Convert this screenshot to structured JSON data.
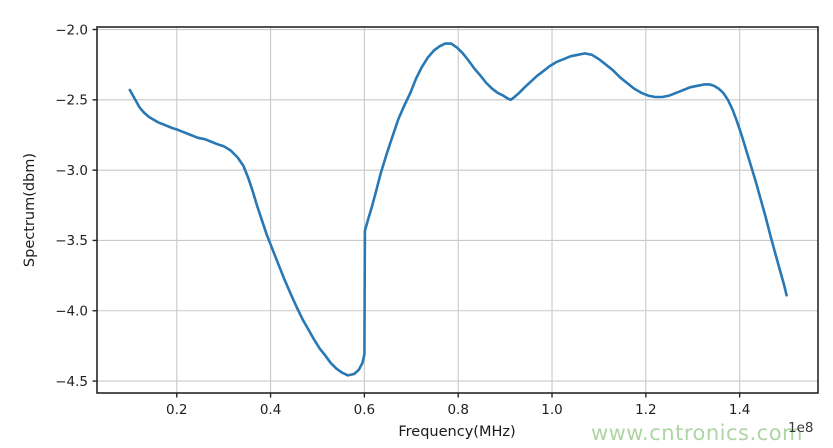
{
  "figure": {
    "offset_label": "1e8",
    "watermark": "www.cntronics.com"
  },
  "chart_data": {
    "type": "line",
    "title": "",
    "xlabel": "Frequency(MHz)",
    "ylabel": "Spectrum(dbm)",
    "x_unit_multiplier_label": "1e8",
    "xlim": [
      0.03,
      1.567
    ],
    "ylim": [
      -4.585,
      -1.982
    ],
    "grid": true,
    "legend_position": "none",
    "xticks": [
      {
        "v": 0.2,
        "label": "0.2"
      },
      {
        "v": 0.4,
        "label": "0.4"
      },
      {
        "v": 0.6,
        "label": "0.6"
      },
      {
        "v": 0.8,
        "label": "0.8"
      },
      {
        "v": 1.0,
        "label": "1.0"
      },
      {
        "v": 1.2,
        "label": "1.2"
      },
      {
        "v": 1.4,
        "label": "1.4"
      }
    ],
    "yticks": [
      {
        "v": -2.0,
        "label": "−2.0"
      },
      {
        "v": -2.5,
        "label": "−2.5"
      },
      {
        "v": -3.0,
        "label": "−3.0"
      },
      {
        "v": -3.5,
        "label": "−3.5"
      },
      {
        "v": -4.0,
        "label": "−4.0"
      },
      {
        "v": -4.5,
        "label": "−4.5"
      }
    ],
    "colors": {
      "line": "#2878b5",
      "grid": "#c9c9c9",
      "spine": "#262626",
      "tick_text": "#1f1f1f",
      "watermark": "#aed5a4",
      "offset_text": "#3a3a3a"
    },
    "series": [
      {
        "name": "spectrum",
        "x": [
          0.1,
          0.105,
          0.11,
          0.115,
          0.12,
          0.13,
          0.14,
          0.15,
          0.16,
          0.175,
          0.19,
          0.2,
          0.215,
          0.23,
          0.245,
          0.26,
          0.275,
          0.29,
          0.3,
          0.315,
          0.33,
          0.342,
          0.352,
          0.362,
          0.372,
          0.382,
          0.392,
          0.405,
          0.418,
          0.43,
          0.443,
          0.455,
          0.468,
          0.48,
          0.492,
          0.505,
          0.517,
          0.528,
          0.54,
          0.552,
          0.565,
          0.578,
          0.588,
          0.596,
          0.6,
          0.601,
          0.608,
          0.616,
          0.625,
          0.635,
          0.648,
          0.66,
          0.672,
          0.685,
          0.698,
          0.71,
          0.722,
          0.735,
          0.748,
          0.76,
          0.772,
          0.785,
          0.798,
          0.81,
          0.822,
          0.835,
          0.848,
          0.86,
          0.872,
          0.884,
          0.896,
          0.905,
          0.912,
          0.92,
          0.93,
          0.942,
          0.955,
          0.968,
          0.98,
          0.995,
          1.01,
          1.025,
          1.04,
          1.055,
          1.07,
          1.085,
          1.1,
          1.115,
          1.13,
          1.145,
          1.16,
          1.175,
          1.19,
          1.205,
          1.22,
          1.235,
          1.25,
          1.265,
          1.28,
          1.295,
          1.31,
          1.325,
          1.335,
          1.345,
          1.355,
          1.365,
          1.375,
          1.385,
          1.395,
          1.405,
          1.415,
          1.425,
          1.435,
          1.445,
          1.455,
          1.465,
          1.475,
          1.485,
          1.495,
          1.5
        ],
        "y": [
          -2.43,
          -2.46,
          -2.49,
          -2.52,
          -2.55,
          -2.59,
          -2.62,
          -2.64,
          -2.66,
          -2.68,
          -2.7,
          -2.71,
          -2.73,
          -2.75,
          -2.77,
          -2.78,
          -2.8,
          -2.82,
          -2.83,
          -2.86,
          -2.91,
          -2.97,
          -3.05,
          -3.15,
          -3.26,
          -3.36,
          -3.46,
          -3.57,
          -3.68,
          -3.78,
          -3.88,
          -3.97,
          -4.06,
          -4.13,
          -4.2,
          -4.27,
          -4.32,
          -4.37,
          -4.41,
          -4.44,
          -4.46,
          -4.45,
          -4.42,
          -4.37,
          -4.31,
          -3.43,
          -3.35,
          -3.26,
          -3.15,
          -3.02,
          -2.88,
          -2.76,
          -2.64,
          -2.54,
          -2.45,
          -2.35,
          -2.27,
          -2.2,
          -2.15,
          -2.12,
          -2.1,
          -2.1,
          -2.13,
          -2.17,
          -2.22,
          -2.28,
          -2.33,
          -2.38,
          -2.42,
          -2.45,
          -2.47,
          -2.49,
          -2.5,
          -2.48,
          -2.45,
          -2.41,
          -2.37,
          -2.33,
          -2.3,
          -2.26,
          -2.23,
          -2.21,
          -2.19,
          -2.18,
          -2.17,
          -2.18,
          -2.21,
          -2.25,
          -2.29,
          -2.34,
          -2.38,
          -2.42,
          -2.45,
          -2.47,
          -2.48,
          -2.48,
          -2.47,
          -2.45,
          -2.43,
          -2.41,
          -2.4,
          -2.39,
          -2.39,
          -2.4,
          -2.42,
          -2.45,
          -2.5,
          -2.57,
          -2.66,
          -2.76,
          -2.87,
          -2.98,
          -3.09,
          -3.21,
          -3.33,
          -3.46,
          -3.58,
          -3.7,
          -3.82,
          -3.89
        ]
      }
    ]
  }
}
